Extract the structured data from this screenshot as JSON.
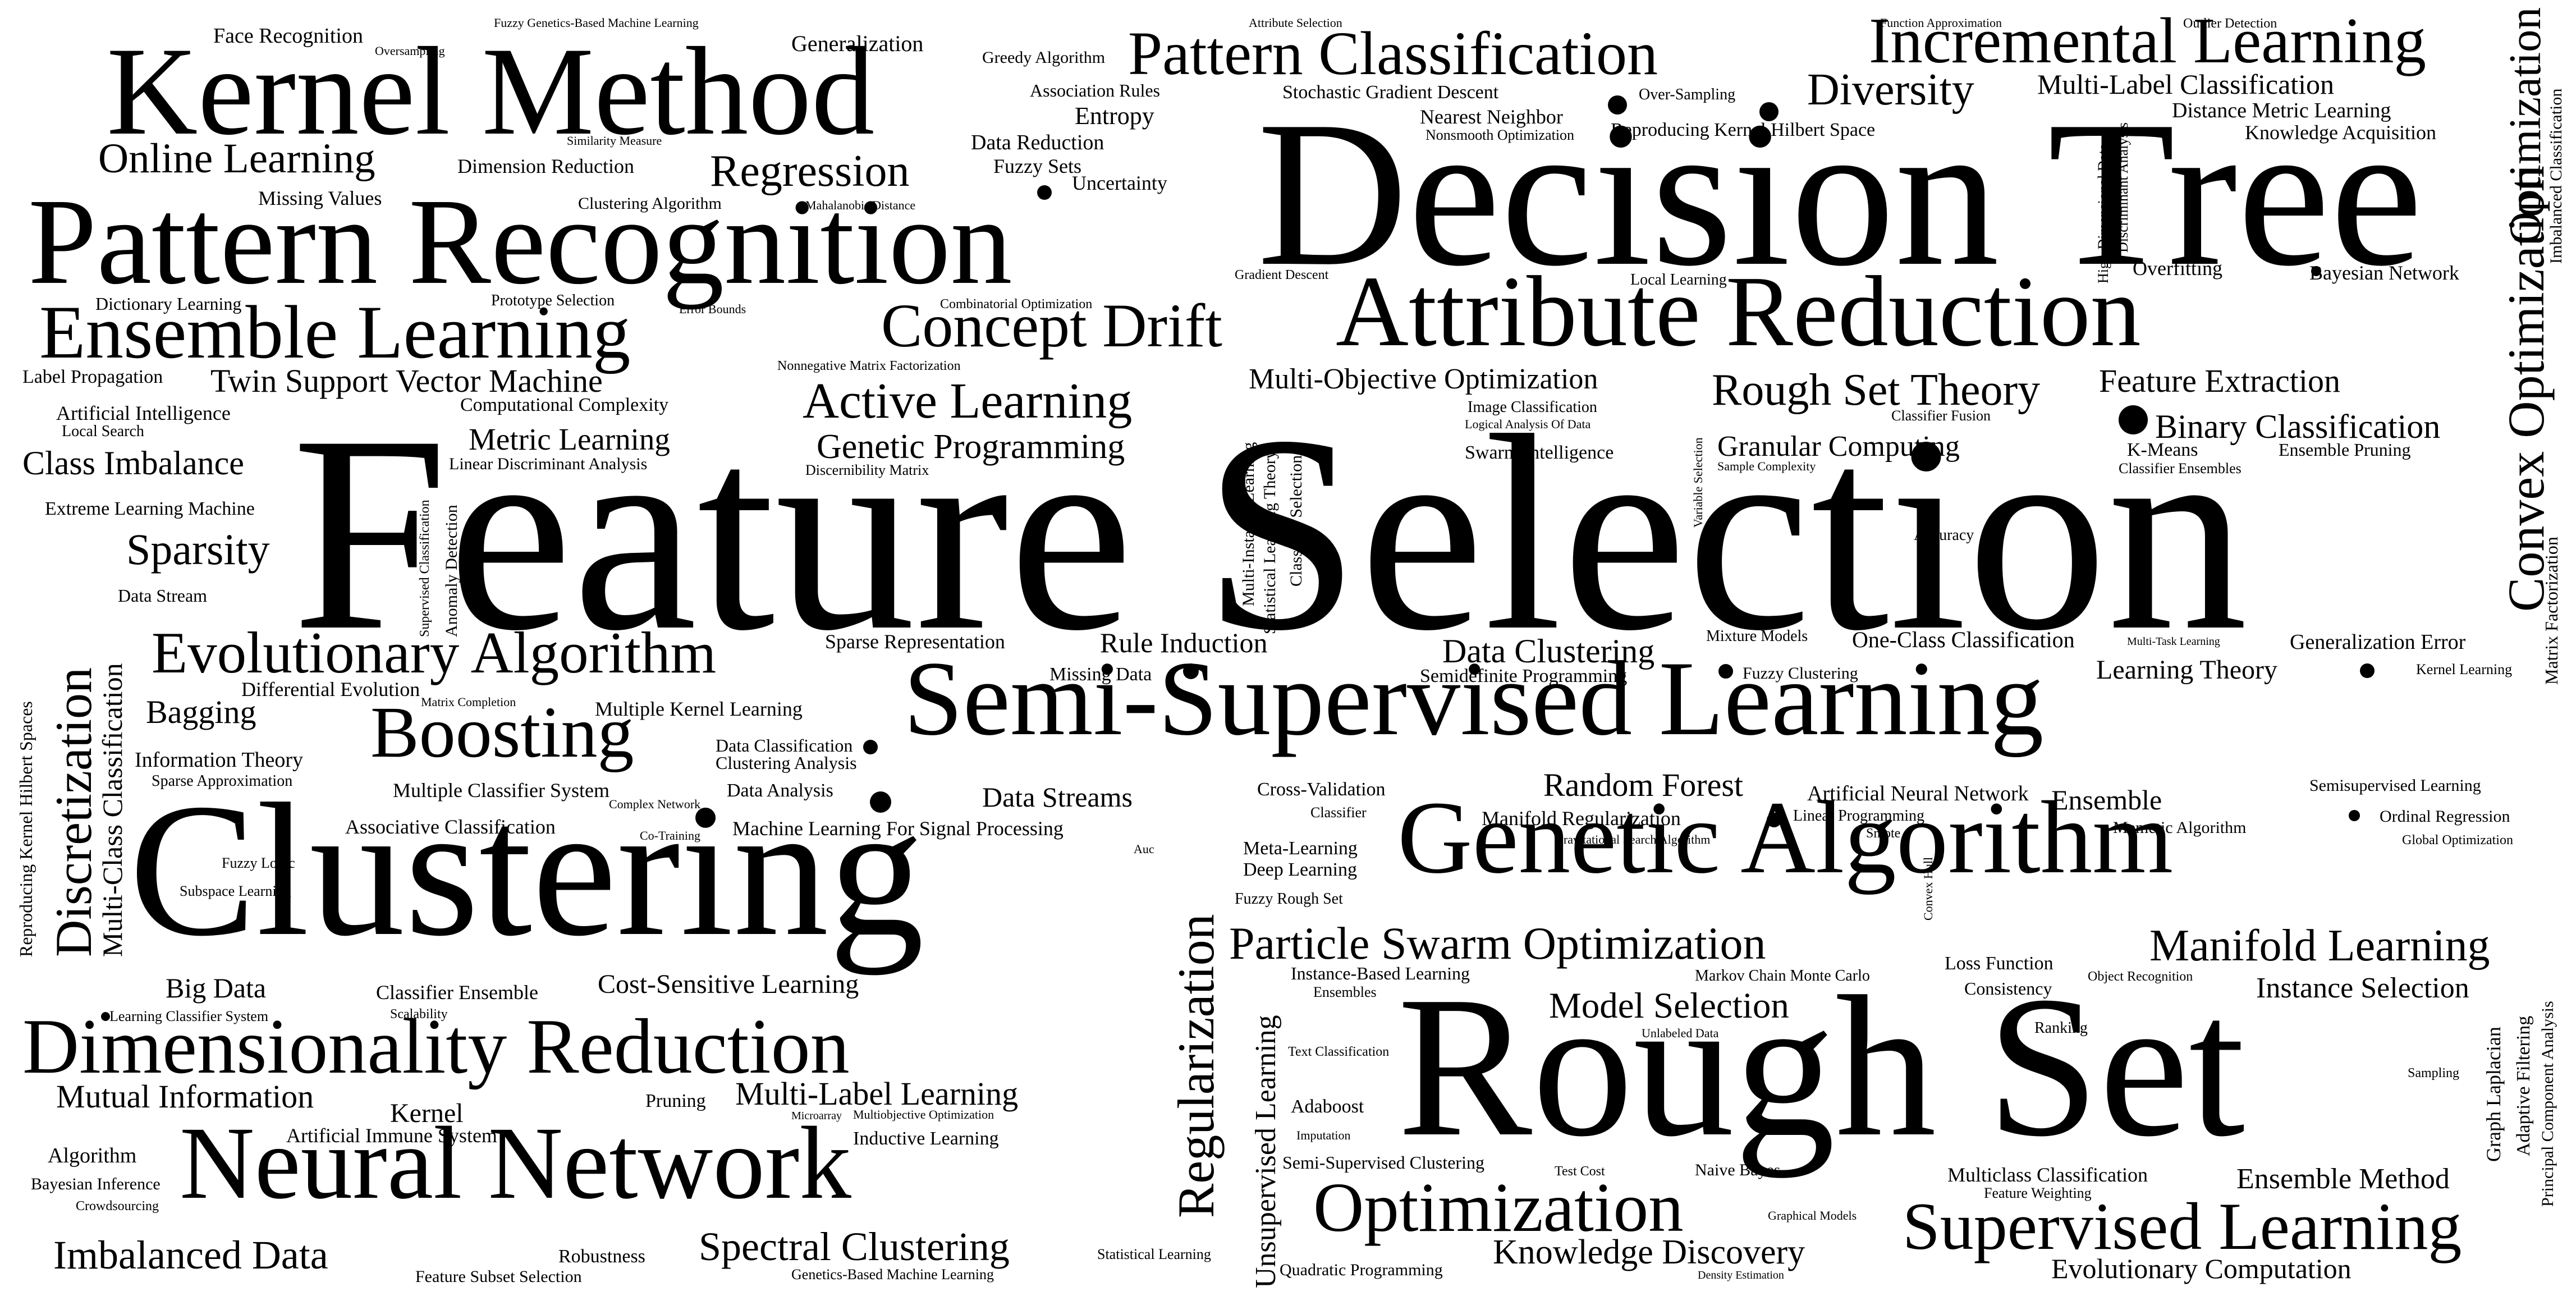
{
  "words": [
    "Feature Selection",
    "Decision Tree",
    "Clustering",
    "Rough Set",
    "Pattern Recognition",
    "Kernel Method",
    "Semi-Supervised Learning",
    "Attribute Reduction",
    "Genetic Algorithm",
    "Neural Network",
    "Dimensionality Reduction",
    "Ensemble Learning",
    "Pattern Classification",
    "Incremental Learning",
    "Concept Drift",
    "Evolutionary Algorithm",
    "Boosting",
    "Supervised Learning",
    "Optimization",
    "Particle Swarm Optimization",
    "Manifold Learning",
    "Rough Set Theory",
    "Active Learning",
    "Regression",
    "Online Learning",
    "Diversity",
    "Twin Support Vector Machine",
    "Genetic Programming",
    "Multi-Objective Optimization",
    "Feature Extraction",
    "Binary Classification",
    "Granular Computing",
    "Metric Learning",
    "Class Imbalance",
    "Sparsity",
    "Data Clustering",
    "Random Forest",
    "Model Selection",
    "Knowledge Discovery",
    "Spectral Clustering",
    "Imbalanced Data",
    "Mutual Information",
    "Multi-Label Learning",
    "Cost-Sensitive Learning",
    "Ensemble Method",
    "Evolutionary Computation",
    "Instance Selection",
    "Multi-Label Classification",
    "Rule Induction",
    "Bagging",
    "Data Streams",
    "Big Data",
    "Kernel",
    "Learning Theory",
    "Ensemble",
    "One-Class Classification",
    "Generalization Error",
    "Artificial Neural Network",
    "Information Theory",
    "Face Recognition",
    "Generalization",
    "Entropy",
    "Nearest Neighbor",
    "Uncertainty",
    "Fuzzy Sets",
    "Data Reduction",
    "Association Rules",
    "Greedy Algorithm",
    "Stochastic Gradient Descent",
    "Over-Sampling",
    "Reproducing Kernel Hilbert Space",
    "Distance Metric Learning",
    "Knowledge Acquisition",
    "Overfitting",
    "Bayesian Network",
    "Dimension Reduction",
    "Missing Values",
    "Clustering Algorithm",
    "Dictionary Learning",
    "Prototype Selection",
    "Error Bounds",
    "Label Propagation",
    "Artificial Intelligence",
    "Local Search",
    "Computational Complexity",
    "Linear Discriminant Analysis",
    "Discernibility Matrix",
    "Extreme Learning Machine",
    "Data Stream",
    "Sparse Representation",
    "Differential Evolution",
    "Matrix Completion",
    "Multiple Kernel Learning",
    "Sparse Approximation",
    "Multiple Classifier System",
    "Complex Network",
    "Data Analysis",
    "Data Classification",
    "Clustering Analysis",
    "Associative Classification",
    "Co-Training",
    "Machine Learning For Signal Processing",
    "Fuzzy Logic",
    "Subspace Learning",
    "Classifier Ensemble",
    "Scalability",
    "Learning Classifier System",
    "Artificial Immune System",
    "Algorithm",
    "Bayesian Inference",
    "Crowdsourcing",
    "Pruning",
    "Microarray",
    "Multiobjective Optimization",
    "Inductive Learning",
    "Robustness",
    "Feature Subset Selection",
    "Genetics-Based Machine Learning",
    "Statistical Learning",
    "Missing Data",
    "Semidefinite Programming",
    "Fuzzy Clustering",
    "Mixture Models",
    "Multi-Task Learning",
    "Kernel Learning",
    "Cross-Validation",
    "Classifier",
    "Manifold Regularization",
    "Linear Programming",
    "Semisupervised Learning",
    "Ordinal Regression",
    "Memetic Algorithm",
    "Gravitational Search Algorithm",
    "Smote",
    "Global Optimization",
    "Meta-Learning",
    "Deep Learning",
    "Fuzzy Rough Set",
    "Auc",
    "Loss Function",
    "Consistency",
    "Object Recognition",
    "Markov Chain Monte Carlo",
    "Instance-Based Learning",
    "Ensembles",
    "Unlabeled Data",
    "Text Classification",
    "Adaboost",
    "Imputation",
    "Semi-Supervised Clustering",
    "Test Cost",
    "Naive Bayes",
    "Ranking",
    "Multiclass Classification",
    "Feature Weighting",
    "Sampling",
    "Graphical Models",
    "Density Estimation",
    "Quadratic Programming",
    "Nonsmooth Optimization",
    "Gradient Descent",
    "Local Learning",
    "Combinatorial Optimization",
    "Nonnegative Matrix Factorization",
    "Image Classification",
    "Logical Analysis Of Data",
    "Swarm Intelligence",
    "Classifier Fusion",
    "Sample Complexity",
    "K-Means",
    "Ensemble Pruning",
    "Classifier Ensembles",
    "Accuracy",
    "Fuzzy Genetics-Based Machine Learning",
    "Attribute Selection",
    "Function Approximation",
    "Outlier Detection",
    "Oversampling",
    "Similarity Measure",
    "Mahalanobis Distance",
    "Convex Optimization",
    "Optimization",
    "Imbalanced Classification",
    "Matrix Factorization",
    "High-Dimensional Data",
    "Discriminant Analysis",
    "Regularization",
    "Unsupervised Learning",
    "Discretization",
    "Multi-Class Classification",
    "Reproducing Kernel Hilbert Spaces",
    "Supervised Classification",
    "Anomaly Detection",
    "Multi-Instance Learning",
    "Statistical Learning Theory",
    "Classifier Selection",
    "Variable Selection",
    "Convex Hull",
    "Graph Laplacian",
    "Adaptive Filtering",
    "Principal Component Analysis"
  ]
}
